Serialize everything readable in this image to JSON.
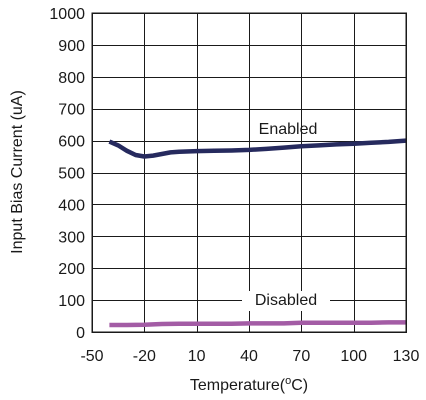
{
  "chart_data": {
    "type": "line",
    "title": "",
    "xlabel": "Temperature(°C)",
    "xlabel_parts": {
      "prefix": "Temperature(",
      "degree": "o",
      "suffix": "C)"
    },
    "ylabel": "Input Bias Current (uA)",
    "xlim": [
      -50,
      130
    ],
    "ylim": [
      0,
      1000
    ],
    "xticks": [
      -50,
      -20,
      10,
      40,
      70,
      100,
      130
    ],
    "yticks": [
      0,
      100,
      200,
      300,
      400,
      500,
      600,
      700,
      800,
      900,
      1000
    ],
    "grid": true,
    "series": [
      {
        "name": "Enabled",
        "color": "#262a5e",
        "x": [
          -40,
          -35,
          -30,
          -25,
          -20,
          -15,
          -10,
          -5,
          0,
          10,
          20,
          30,
          40,
          50,
          60,
          70,
          80,
          90,
          100,
          110,
          120,
          130
        ],
        "y": [
          597,
          585,
          568,
          555,
          550,
          553,
          558,
          563,
          565,
          567,
          568,
          569,
          571,
          574,
          578,
          582,
          585,
          588,
          590,
          593,
          596,
          600
        ]
      },
      {
        "name": "Disabled",
        "color": "#a35ca5",
        "x": [
          -40,
          -30,
          -20,
          -10,
          0,
          10,
          20,
          30,
          40,
          50,
          60,
          70,
          80,
          90,
          100,
          110,
          120,
          130
        ],
        "y": [
          22,
          22,
          23,
          25,
          26,
          26,
          26,
          26,
          27,
          27,
          27,
          29,
          29,
          29,
          29,
          29,
          30,
          30
        ]
      }
    ],
    "annotations": [
      {
        "text": "Enabled",
        "series": "Enabled"
      },
      {
        "text": "Disabled",
        "series": "Disabled"
      }
    ]
  }
}
